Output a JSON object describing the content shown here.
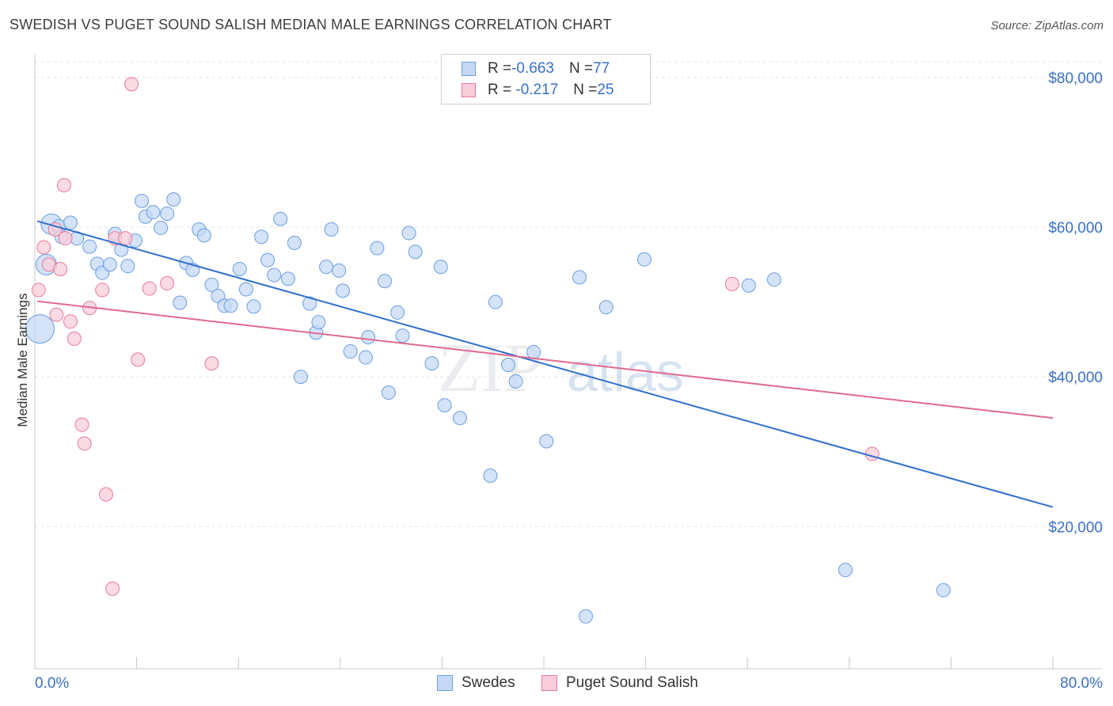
{
  "header": {
    "title": "SWEDISH VS PUGET SOUND SALISH MEDIAN MALE EARNINGS CORRELATION CHART",
    "source": "Source: ZipAtlas.com"
  },
  "colors": {
    "swedes": "#6a9ee0",
    "swedes_fill": "#c5d9f5",
    "swedes_line": "#2f6fcc",
    "salish": "#e8799b",
    "salish_fill": "#f8cdd9",
    "salish_line": "#e06990",
    "axis_text": "#3a70c8",
    "grid": "#e4e4e4"
  },
  "stats_legend": [
    {
      "r_label": "R = ",
      "r_value": "-0.663",
      "n_label": "N = ",
      "n_value": "77"
    },
    {
      "r_label": "R = ",
      "r_value": " -0.217",
      "n_label": "N = ",
      "n_value": "25"
    }
  ],
  "watermark": {
    "part1": "ZIP",
    "part2": "atlas"
  },
  "chart_data": {
    "type": "scatter",
    "title": "SWEDISH VS PUGET SOUND SALISH MEDIAN MALE EARNINGS CORRELATION CHART",
    "xlabel": "",
    "ylabel": "Median Male Earnings",
    "xlim": [
      0,
      80
    ],
    "ylim": [
      1000,
      84000
    ],
    "x_tick_labels": [
      "0.0%",
      "80.0%"
    ],
    "y_ticks": [
      20000,
      40000,
      60000,
      80000
    ],
    "y_tick_labels": [
      "$20,000",
      "$40,000",
      "$60,000",
      "$80,000"
    ],
    "grid": true,
    "legend_position": "bottom-center",
    "series": [
      {
        "name": "Swedes",
        "r": -0.663,
        "n": 77,
        "trend": [
          [
            0.2,
            60800
          ],
          [
            80,
            22600
          ]
        ],
        "points": [
          [
            0.4,
            46400,
            3
          ],
          [
            0.9,
            55000,
            2
          ],
          [
            1.3,
            60400,
            2
          ],
          [
            1.9,
            60100,
            1
          ],
          [
            2.8,
            60600,
            1
          ],
          [
            2.1,
            58700,
            1
          ],
          [
            3.3,
            58500,
            1
          ],
          [
            4.3,
            57400,
            1
          ],
          [
            4.9,
            55100,
            1
          ],
          [
            5.3,
            53900,
            1
          ],
          [
            5.9,
            55000,
            1
          ],
          [
            6.3,
            59100,
            1
          ],
          [
            6.8,
            57000,
            1
          ],
          [
            7.3,
            54800,
            1
          ],
          [
            7.9,
            58200,
            1
          ],
          [
            8.4,
            63500,
            1
          ],
          [
            8.7,
            61400,
            1
          ],
          [
            9.3,
            62000,
            1
          ],
          [
            9.9,
            59900,
            1
          ],
          [
            10.4,
            61800,
            1
          ],
          [
            10.9,
            63700,
            1
          ],
          [
            11.4,
            49900,
            1
          ],
          [
            11.9,
            55200,
            1
          ],
          [
            12.4,
            54300,
            1
          ],
          [
            12.9,
            59700,
            1
          ],
          [
            13.3,
            58900,
            1
          ],
          [
            13.9,
            52300,
            1
          ],
          [
            14.4,
            50800,
            1
          ],
          [
            14.9,
            49500,
            1
          ],
          [
            15.4,
            49500,
            1
          ],
          [
            16.1,
            54400,
            1
          ],
          [
            16.6,
            51700,
            1
          ],
          [
            17.2,
            49400,
            1
          ],
          [
            17.8,
            58700,
            1
          ],
          [
            18.3,
            55600,
            1
          ],
          [
            18.8,
            53600,
            1
          ],
          [
            19.3,
            61100,
            1
          ],
          [
            19.9,
            53100,
            1
          ],
          [
            20.4,
            57900,
            1
          ],
          [
            20.9,
            40000,
            1
          ],
          [
            21.6,
            49800,
            1
          ],
          [
            22.1,
            45900,
            1
          ],
          [
            22.3,
            47300,
            1
          ],
          [
            22.9,
            54700,
            1
          ],
          [
            23.3,
            59700,
            1
          ],
          [
            23.9,
            54200,
            1
          ],
          [
            24.2,
            51500,
            1
          ],
          [
            24.8,
            43400,
            1
          ],
          [
            26.0,
            42600,
            1
          ],
          [
            26.2,
            45300,
            1
          ],
          [
            26.9,
            57200,
            1
          ],
          [
            27.5,
            52800,
            1
          ],
          [
            27.8,
            37900,
            1
          ],
          [
            28.5,
            48600,
            1
          ],
          [
            28.9,
            45500,
            1
          ],
          [
            29.4,
            59200,
            1
          ],
          [
            29.9,
            56700,
            1
          ],
          [
            31.2,
            41800,
            1
          ],
          [
            31.9,
            54700,
            1
          ],
          [
            32.2,
            36200,
            1
          ],
          [
            33.4,
            34500,
            1
          ],
          [
            35.8,
            26800,
            1
          ],
          [
            36.2,
            50000,
            1
          ],
          [
            37.2,
            41600,
            1
          ],
          [
            37.8,
            39400,
            1
          ],
          [
            39.2,
            43300,
            1
          ],
          [
            40.2,
            31400,
            1
          ],
          [
            42.8,
            53300,
            1
          ],
          [
            43.3,
            8000,
            1
          ],
          [
            44.9,
            49300,
            1
          ],
          [
            47.9,
            55700,
            1
          ],
          [
            56.1,
            52200,
            1
          ],
          [
            58.1,
            53000,
            1
          ],
          [
            63.7,
            14200,
            1
          ],
          [
            71.4,
            11500,
            1
          ]
        ]
      },
      {
        "name": "Puget Sound Salish",
        "r": -0.217,
        "n": 25,
        "trend": [
          [
            0.2,
            50100
          ],
          [
            80,
            34500
          ]
        ],
        "points": [
          [
            0.3,
            51600,
            1
          ],
          [
            0.7,
            57300,
            1
          ],
          [
            1.1,
            55000,
            1
          ],
          [
            1.6,
            59700,
            1
          ],
          [
            1.7,
            48300,
            1
          ],
          [
            2.0,
            54400,
            1
          ],
          [
            2.3,
            65600,
            1
          ],
          [
            2.4,
            58500,
            1
          ],
          [
            2.8,
            47400,
            1
          ],
          [
            3.1,
            45100,
            1
          ],
          [
            3.7,
            33600,
            1
          ],
          [
            3.9,
            31100,
            1
          ],
          [
            4.3,
            49200,
            1
          ],
          [
            5.3,
            51600,
            1
          ],
          [
            5.6,
            24300,
            1
          ],
          [
            6.1,
            11700,
            1
          ],
          [
            6.3,
            58500,
            1
          ],
          [
            7.1,
            58500,
            1
          ],
          [
            8.1,
            42300,
            1
          ],
          [
            9.0,
            51800,
            1
          ],
          [
            10.4,
            52500,
            1
          ],
          [
            13.9,
            41800,
            1
          ],
          [
            7.6,
            79100,
            1
          ],
          [
            54.8,
            52400,
            1
          ],
          [
            65.8,
            29700,
            1
          ]
        ]
      }
    ]
  },
  "bottom_legend": [
    {
      "label": "Swedes"
    },
    {
      "label": "Puget Sound Salish"
    }
  ]
}
